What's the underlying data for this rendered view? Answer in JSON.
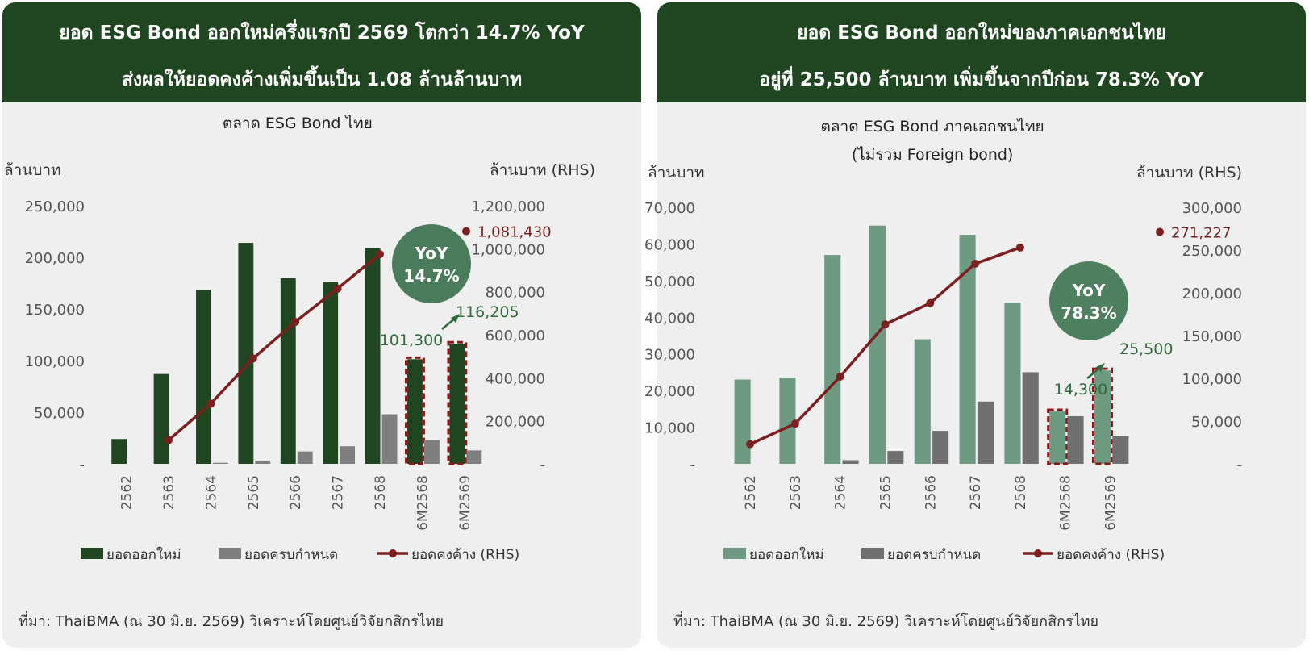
{
  "panels": [
    {
      "id": "left",
      "header_line1": "ยอด ESG Bond ออกใหม่ครึ่งแรกปี 2569 โตกว่า 14.7% YoY",
      "header_line2": "ส่งผลให้ยอดคงค้างเพิ่มขึ้นเป็น 1.08 ล้านล้านบาท",
      "source": "ที่มา: ThaiBMA (ณ 30 มิ.ย. 2569)  วิเคราะห์โดยศูนย์วิจัยกสิกรไทย",
      "yoy_badge": {
        "label": "YoY",
        "value": "14.7%"
      },
      "chart_data": {
        "type": "bar",
        "title": [
          "ตลาด ESG Bond ไทย"
        ],
        "ylabel": "ล้านบาท",
        "y2label": "ล้านบาท (RHS)",
        "ylim": [
          0,
          250000
        ],
        "y2lim": [
          0,
          1200000
        ],
        "yticks": [
          "-",
          "50,000",
          "100,000",
          "150,000",
          "200,000",
          "250,000"
        ],
        "y2ticks": [
          "-",
          "200,000",
          "400,000",
          "600,000",
          "800,000",
          "1,000,000",
          "1,200,000"
        ],
        "categories": [
          "2562",
          "2563",
          "2564",
          "2565",
          "2566",
          "2567",
          "2568",
          "6M2568",
          "6M2569"
        ],
        "highlight": [
          "6M2568",
          "6M2569"
        ],
        "series": [
          {
            "name": "ยอดออกใหม่",
            "kind": "bar",
            "color": "#1f4621",
            "values": [
              24000,
              87000,
              168000,
              214000,
              180000,
              176000,
              209000,
              101300,
              116205
            ]
          },
          {
            "name": "ยอดครบกำหนด",
            "kind": "bar",
            "color": "#7f7f7f",
            "values": [
              0,
              0,
              1000,
              3000,
              12000,
              17000,
              48000,
              23000,
              13000
            ]
          },
          {
            "name": "ยอดคงค้าง (RHS)",
            "kind": "line",
            "axis": "right",
            "color": "#7b1f1f",
            "values": [
              null,
              110000,
              280000,
              490000,
              660000,
              815000,
              975000,
              null,
              1081430
            ]
          }
        ],
        "annotations": {
          "outstanding_label": "1,081,430",
          "prev_label": "101,300",
          "curr_label": "116,205"
        }
      }
    },
    {
      "id": "right",
      "header_line1": "ยอด ESG Bond ออกใหม่ของภาคเอกชนไทย",
      "header_line2": "อยู่ที่ 25,500 ล้านบาท เพิ่มขึ้นจากปีก่อน 78.3% YoY",
      "source": "ที่มา: ThaiBMA (ณ 30 มิ.ย. 2569) วิเคราะห์โดยศูนย์วิจัยกสิกรไทย",
      "yoy_badge": {
        "label": "YoY",
        "value": "78.3%"
      },
      "chart_data": {
        "type": "bar",
        "title": [
          "ตลาด ESG Bond ภาคเอกชนไทย",
          "(ไม่รวม Foreign bond)"
        ],
        "ylabel": "ล้านบาท",
        "y2label": "ล้านบาท (RHS)",
        "ylim": [
          0,
          70000
        ],
        "y2lim": [
          0,
          300000
        ],
        "yticks": [
          "-",
          "10,000",
          "20,000",
          "30,000",
          "40,000",
          "50,000",
          "60,000",
          "70,000"
        ],
        "y2ticks": [
          "-",
          "50,000",
          "100,000",
          "150,000",
          "200,000",
          "250,000",
          "300,000"
        ],
        "categories": [
          "2562",
          "2563",
          "2564",
          "2565",
          "2566",
          "2567",
          "2568",
          "6M2568",
          "6M2569"
        ],
        "highlight": [
          "6M2568",
          "6M2569"
        ],
        "series": [
          {
            "name": "ยอดออกใหม่",
            "kind": "bar",
            "color": "#6f9a82",
            "values": [
              23000,
              23500,
              57000,
              65000,
              34000,
              62500,
              44000,
              14300,
              25500
            ]
          },
          {
            "name": "ยอดครบกำหนด",
            "kind": "bar",
            "color": "#707070",
            "values": [
              0,
              0,
              1000,
              3500,
              9000,
              17000,
              25000,
              13000,
              7500
            ]
          },
          {
            "name": "ยอดคงค้าง (RHS)",
            "kind": "line",
            "axis": "right",
            "color": "#7b1f1f",
            "values": [
              23000,
              47000,
              102000,
              163000,
              188000,
              234000,
              253000,
              null,
              271227
            ]
          }
        ],
        "annotations": {
          "outstanding_label": "271,227",
          "prev_label": "14,300",
          "curr_label": "25,500"
        }
      }
    }
  ]
}
